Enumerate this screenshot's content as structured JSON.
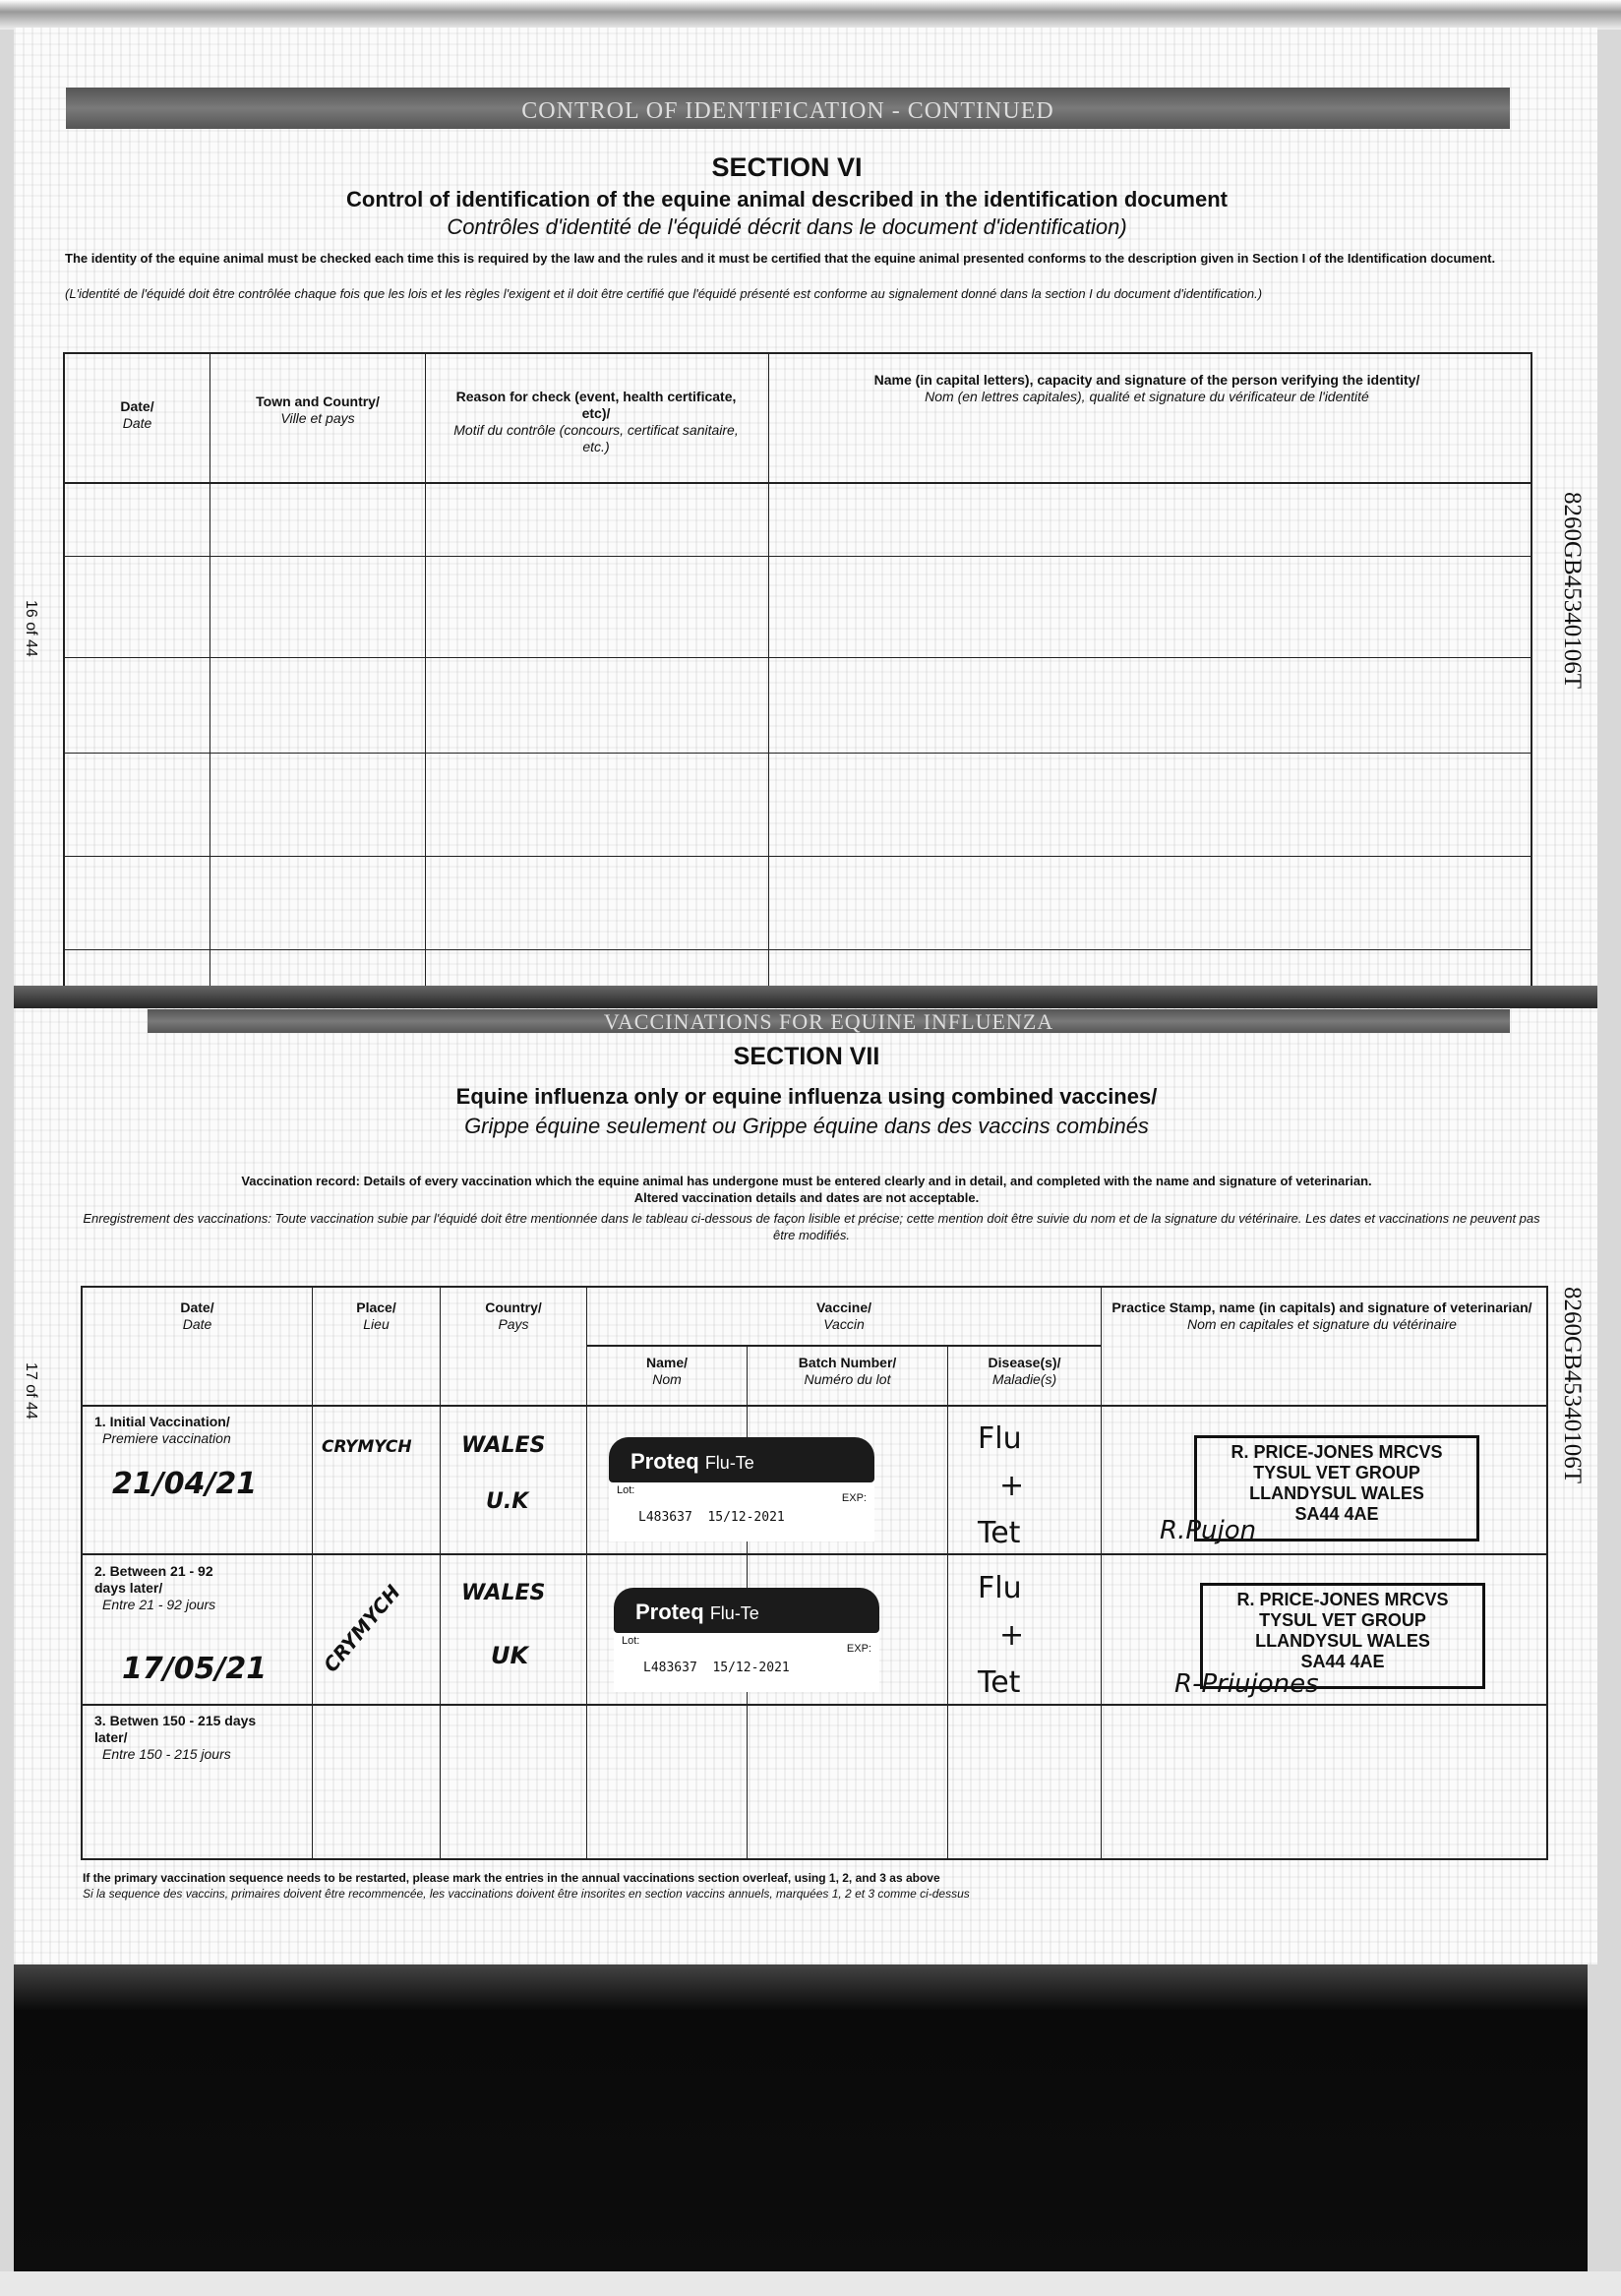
{
  "page16": {
    "banner": "CONTROL OF IDENTIFICATION - CONTINUED",
    "section": "SECTION VI",
    "title": "Control of identification of the equine animal described in the identification document",
    "title_fr": "Contrôles d'identité de l'équidé décrit dans le document d'identification)",
    "intro": "The identity of the equine animal must be checked each time this is required by the law and the rules and it must be certified that the equine animal presented conforms to the description given in Section I of the Identification document.",
    "intro_fr": "(L'identité de l'équidé doit être contrôlée chaque fois que les lois et les règles l'exigent et il doit être certifié que l'équidé présenté est conforme au signalement donné dans la section I du document d'identification.)",
    "columns": [
      {
        "en": "Date/",
        "fr": "Date"
      },
      {
        "en": "Town and Country/",
        "fr": "Ville et pays"
      },
      {
        "en": "Reason for check (event, health certificate, etc)/",
        "fr": "Motif du contrôle (concours, certificat sanitaire, etc.)"
      },
      {
        "en": "Name (in capital letters), capacity and signature of the person verifying the identity/",
        "fr": "Nom (en lettres capitales), qualité et signature du vérificateur de l'identité"
      }
    ],
    "page_number": "16 of 44",
    "passport_number": "8260GB45340106T"
  },
  "page17": {
    "banner": "VACCINATIONS FOR EQUINE INFLUENZA",
    "section": "SECTION VII",
    "title": "Equine influenza only or equine influenza using combined vaccines/",
    "title_fr": "Grippe équine seulement ou Grippe équine dans des vaccins combinés",
    "intro": "Vaccination record: Details of every vaccination which the equine animal has undergone must be entered clearly and in detail, and completed with the name and signature of veterinarian.",
    "intro2": "Altered vaccination details and dates are not acceptable.",
    "intro_fr": "Enregistrement des vaccinations: Toute vaccination subie par l'équidé doit être mentionnée dans le tableau ci-dessous de façon lisible et précise; cette mention doit être suivie du nom et de la signature du vétérinaire. Les dates et vaccinations ne peuvent pas être modifiés.",
    "columns": {
      "date": {
        "en": "Date/",
        "fr": "Date"
      },
      "place": {
        "en": "Place/",
        "fr": "Lieu"
      },
      "country": {
        "en": "Country/",
        "fr": "Pays"
      },
      "vaccine": {
        "en": "Vaccine/",
        "fr": "Vaccin"
      },
      "name": {
        "en": "Name/",
        "fr": "Nom"
      },
      "batch": {
        "en": "Batch Number/",
        "fr": "Numéro du lot"
      },
      "disease": {
        "en": "Disease(s)/",
        "fr": "Maladie(s)"
      },
      "stamp": {
        "en": "Practice Stamp, name (in capitals) and signature of veterinarian/",
        "fr": "Nom en capitales et signature du vétérinaire"
      }
    },
    "rows": [
      {
        "label": "1. Initial Vaccination/",
        "label_fr": "Premiere vaccination",
        "date": "21/04/21",
        "place": "CRYMYCH",
        "country": "WALES",
        "country2": "U.K",
        "vaccine_brand": "Proteq",
        "vaccine_product": "Flu-Te",
        "lot_label": "Lot:",
        "exp_label": "EXP:",
        "lot": "L483637",
        "exp": "15/12-2021",
        "disease": "Flu",
        "disease_plus": "+",
        "disease2": "Tet",
        "stamp": [
          "R. PRICE-JONES MRCVS",
          "TYSUL VET GROUP",
          "LLANDYSUL WALES",
          "SA44 4AE"
        ],
        "signature": "R.Pujon"
      },
      {
        "label": "2. Between 21 - 92 days later/",
        "label_fr": "Entre 21 - 92 jours",
        "date": "17/05/21",
        "place": "CRYMYCH",
        "country": "WALES",
        "country2": "UK",
        "vaccine_brand": "Proteq",
        "vaccine_product": "Flu-Te",
        "lot_label": "Lot:",
        "exp_label": "EXP:",
        "lot": "L483637",
        "exp": "15/12-2021",
        "disease": "Flu",
        "disease_plus": "+",
        "disease2": "Tet",
        "stamp": [
          "R. PRICE-JONES MRCVS",
          "TYSUL VET GROUP",
          "LLANDYSUL WALES",
          "SA44 4AE"
        ],
        "signature": "R-Priujones"
      },
      {
        "label": "3. Betwen 150 - 215 days later/",
        "label_fr": "Entre 150 - 215 jours"
      }
    ],
    "footnote": "If the primary vaccination sequence needs to be restarted, please mark the entries in the annual vaccinations section overleaf, using 1, 2, and 3 as above",
    "footnote_fr": "Si la sequence des vaccins, primaires doivent être recommencée, les vaccinations doivent être insorites en section vaccins annuels, marquées 1, 2 et 3 comme ci-dessus",
    "page_number": "17 of 44",
    "passport_number": "8260GB45340106T"
  }
}
